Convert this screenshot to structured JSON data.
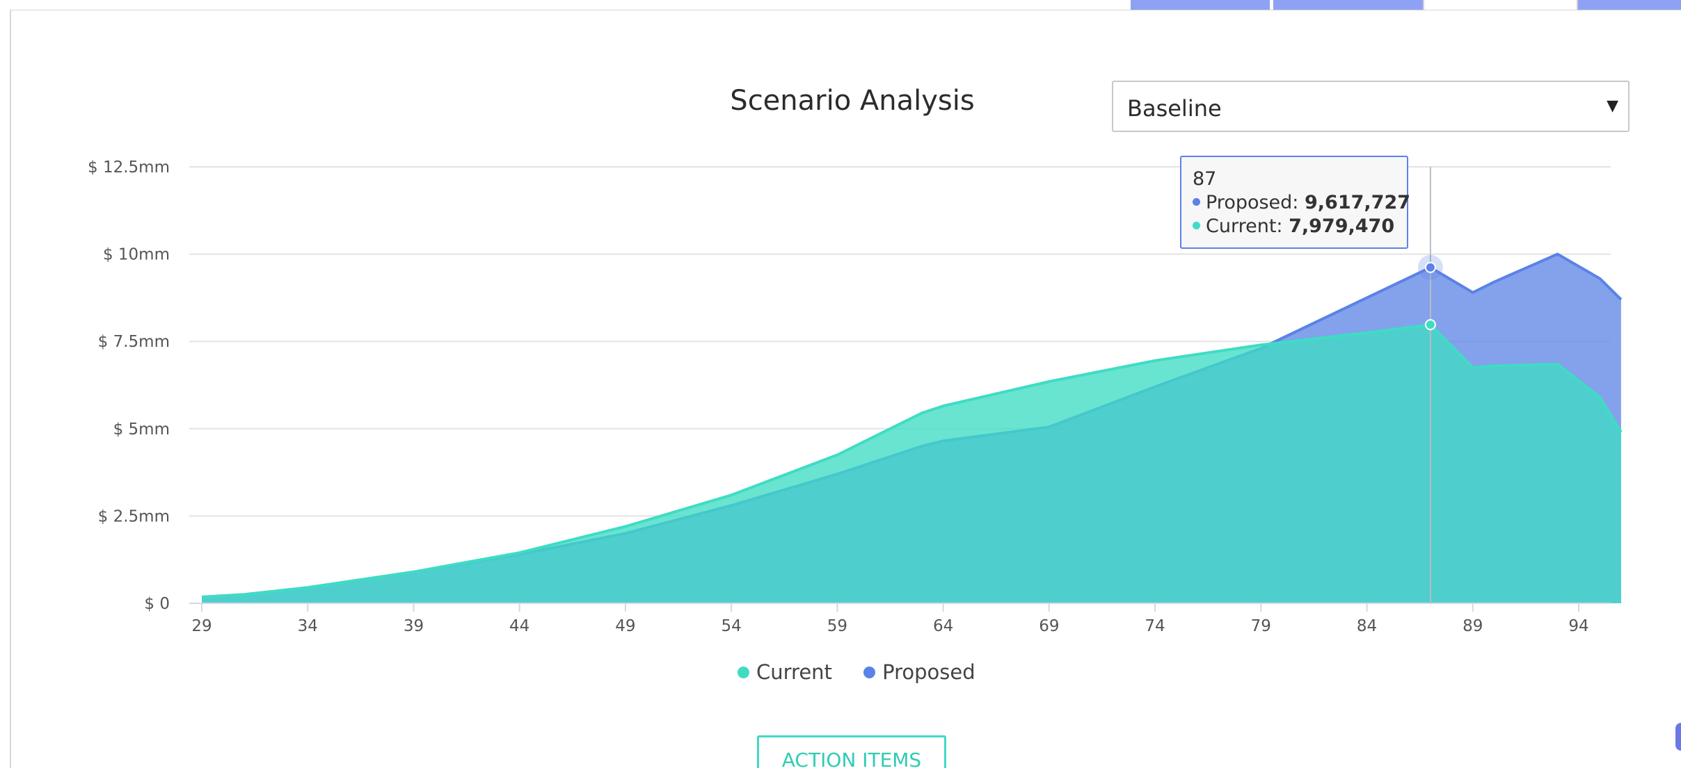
{
  "header": {
    "title": "Scenario Analysis"
  },
  "scenario_select": {
    "selected": "Baseline",
    "arrow": "▼"
  },
  "tooltip": {
    "x": "87",
    "rows": [
      {
        "name": "Proposed",
        "label": "Proposed: ",
        "value": "9,617,727"
      },
      {
        "name": "Current",
        "label": "Current: ",
        "value": "7,979,470"
      }
    ]
  },
  "legend": {
    "items": [
      {
        "label": "Current",
        "color": "#3fdcc4"
      },
      {
        "label": "Proposed",
        "color": "#5b82e6"
      }
    ]
  },
  "action_button": {
    "label": "ACTION ITEMS"
  },
  "colors": {
    "current": "#3fdcc4",
    "proposed": "#5b82e6",
    "button_accent": "#41d9c3",
    "top_tabs": "#8ea2f5"
  },
  "chart_data": {
    "type": "area",
    "title": "Scenario Analysis",
    "xlabel": "",
    "ylabel": "",
    "xlim": [
      29,
      96
    ],
    "ylim": [
      0,
      12500000
    ],
    "x_ticks": [
      29,
      34,
      39,
      44,
      49,
      54,
      59,
      64,
      69,
      74,
      79,
      84,
      89,
      94
    ],
    "y_ticks": [
      {
        "value": 0,
        "label": "$ 0"
      },
      {
        "value": 2500000,
        "label": "$ 2.5mm"
      },
      {
        "value": 5000000,
        "label": "$ 5mm"
      },
      {
        "value": 7500000,
        "label": "$ 7.5mm"
      },
      {
        "value": 10000000,
        "label": "$ 10mm"
      },
      {
        "value": 12500000,
        "label": "$ 12.5mm"
      }
    ],
    "grid": true,
    "legend_position": "bottom-center",
    "x": [
      29,
      31,
      34,
      39,
      44,
      49,
      54,
      59,
      63,
      64,
      69,
      74,
      79,
      84,
      87,
      89,
      90,
      93,
      95,
      96
    ],
    "series": [
      {
        "name": "Current",
        "color": "#3fdcc4",
        "values": [
          180000,
          250000,
          450000,
          900000,
          1450000,
          2200000,
          3100000,
          4250000,
          5450000,
          5650000,
          6350000,
          6950000,
          7400000,
          7750000,
          7979470,
          6750000,
          6800000,
          6850000,
          5900000,
          4900000
        ]
      },
      {
        "name": "Proposed",
        "color": "#5b82e6",
        "values": [
          180000,
          250000,
          450000,
          900000,
          1400000,
          2000000,
          2800000,
          3700000,
          4500000,
          4650000,
          5050000,
          6200000,
          7300000,
          8750000,
          9617727,
          8900000,
          9200000,
          10000000,
          9300000,
          8700000
        ]
      }
    ],
    "hover": {
      "x": 87,
      "series": [
        "Proposed",
        "Current"
      ]
    }
  }
}
